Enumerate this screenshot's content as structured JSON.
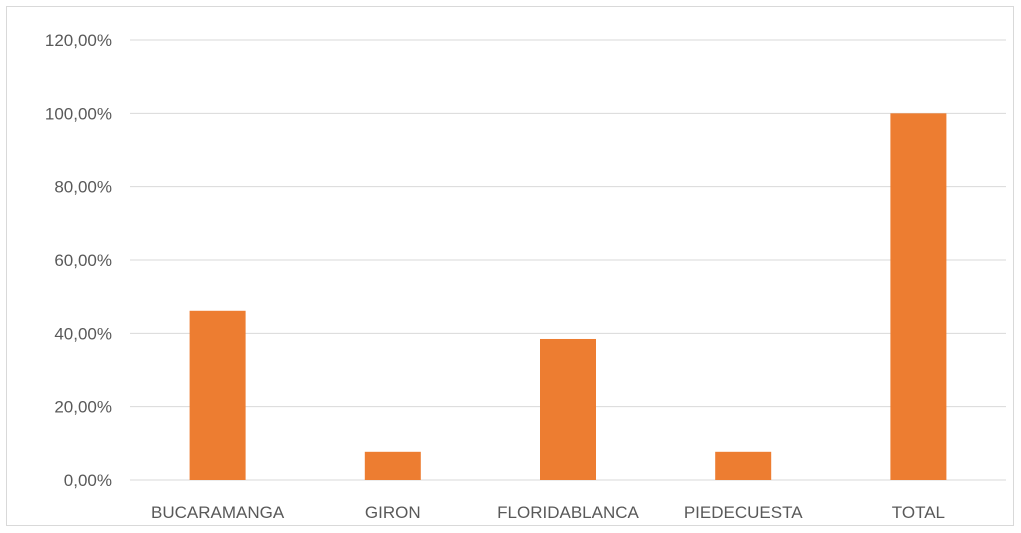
{
  "chart_data": {
    "type": "bar",
    "categories": [
      "BUCARAMANGA",
      "GIRON",
      "FLORIDABLANCA",
      "PIEDECUESTA",
      "TOTAL"
    ],
    "values": [
      0.4615,
      0.0769,
      0.3846,
      0.0769,
      1.0
    ],
    "y_ticks": [
      "0,00%",
      "20,00%",
      "40,00%",
      "60,00%",
      "80,00%",
      "100,00%",
      "120,00%"
    ],
    "ylim": [
      0,
      1.2
    ],
    "grid": true,
    "legend": "none",
    "colors": {
      "bar": "#ed7d31",
      "grid": "#d9d9d9",
      "text": "#595959"
    }
  }
}
